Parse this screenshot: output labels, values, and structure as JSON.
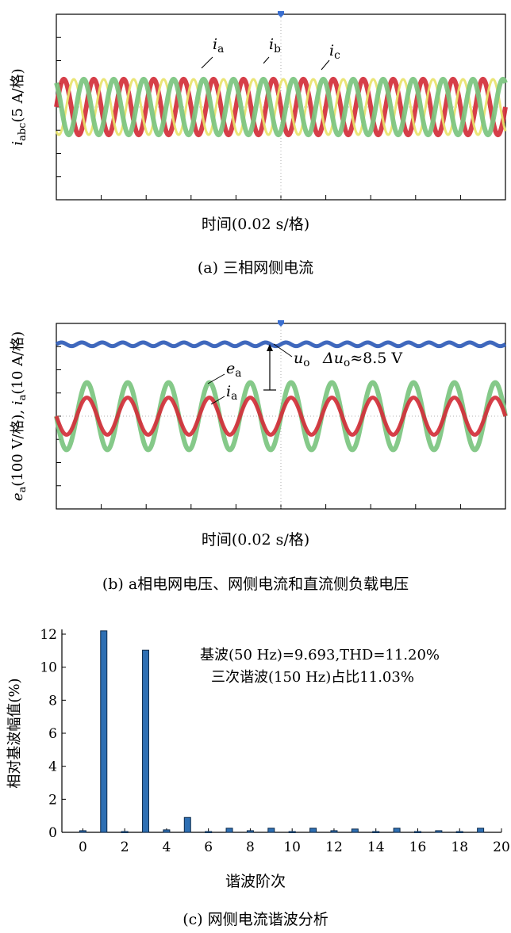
{
  "chart_data": [
    {
      "type": "line",
      "panel": "a",
      "ylabel_sym": "i",
      "ylabel_sub": "abc",
      "ylabel_rest": "(5 A/格)",
      "xlabel": "时间(0.02 s/格)",
      "caption": "(a) 三相网侧电流",
      "series": [
        {
          "name": "ia",
          "sym": "i",
          "sub": "a",
          "color": "#d32f3a",
          "cycles": 15,
          "amplitude_div": 1.2,
          "phase_deg": 0
        },
        {
          "name": "ib",
          "sym": "i",
          "sub": "b",
          "color": "#e8e36a",
          "cycles": 15,
          "amplitude_div": 1.2,
          "phase_deg": -120
        },
        {
          "name": "ic",
          "sym": "i",
          "sub": "c",
          "color": "#7bc47f",
          "cycles": 15,
          "amplitude_div": 1.2,
          "phase_deg": 120
        }
      ],
      "grid": {
        "x_divisions": 10,
        "y_divisions": 8
      }
    },
    {
      "type": "line",
      "panel": "b",
      "ylabel_e": "e",
      "ylabel_e_sub": "a",
      "ylabel_mid": "(100 V/格), ",
      "ylabel_i": "i",
      "ylabel_i_sub": "a",
      "ylabel_rest": "(10 A/格)",
      "xlabel": "时间(0.02 s/格)",
      "caption": "(b) a相电网电压、网侧电流和直流侧负载电压",
      "annotation": {
        "sym": "Δu",
        "sub": "o",
        "rest": "≈8.5 V"
      },
      "series": [
        {
          "name": "uo",
          "sym": "u",
          "sub": "o",
          "color": "#2f5bb7",
          "cycles": 22,
          "amplitude_div": 0.08,
          "offset_div": 3.1
        },
        {
          "name": "ea",
          "sym": "e",
          "sub": "a",
          "color": "#7bc47f",
          "cycles": 11,
          "amplitude_div": 1.45,
          "offset_div": 0
        },
        {
          "name": "ia",
          "sym": "i",
          "sub": "a",
          "color": "#d32f3a",
          "cycles": 11,
          "amplitude_div": 0.8,
          "offset_div": 0
        }
      ],
      "grid": {
        "x_divisions": 10,
        "y_divisions": 8
      }
    },
    {
      "type": "bar",
      "panel": "c",
      "xlabel": "谐波阶次",
      "ylabel": "相对基波幅值(%)",
      "caption": "(c) 网侧电流谐波分析",
      "note_line1": "基波(50 Hz)=9.693,THD=11.20%",
      "note_line2": "三次谐波(150 Hz)占比11.03%",
      "xlim": [
        -1,
        20
      ],
      "ylim": [
        0,
        12
      ],
      "xticks": [
        0,
        2,
        4,
        6,
        8,
        10,
        12,
        14,
        16,
        18,
        20
      ],
      "yticks": [
        0,
        2,
        4,
        6,
        8,
        10,
        12
      ],
      "x": [
        0,
        1,
        2,
        3,
        4,
        5,
        6,
        7,
        8,
        9,
        10,
        11,
        12,
        13,
        14,
        15,
        16,
        17,
        18,
        19
      ],
      "values": [
        0.1,
        12.2,
        0.05,
        11.03,
        0.15,
        0.9,
        0.05,
        0.25,
        0.1,
        0.25,
        0.05,
        0.25,
        0.1,
        0.2,
        0.05,
        0.25,
        0.05,
        0.1,
        0.05,
        0.25
      ]
    }
  ]
}
